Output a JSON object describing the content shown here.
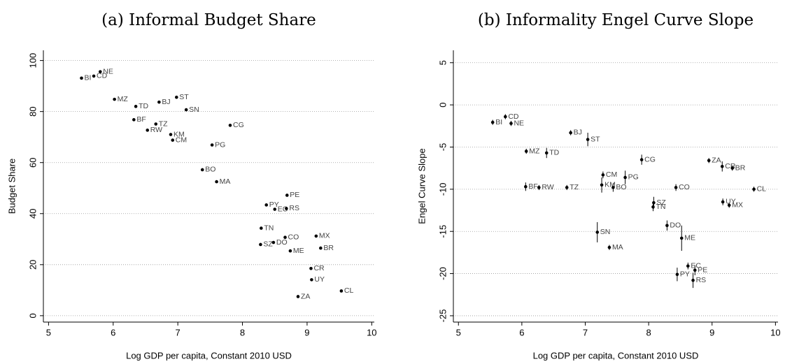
{
  "chart_data": [
    {
      "type": "scatter",
      "title": "(a) Informal Budget Share",
      "xlabel": "Log GDP per capita, Constant 2010 USD",
      "ylabel": "Budget Share",
      "labels": [
        "BI",
        "CD",
        "NE",
        "MZ",
        "TD",
        "BJ",
        "ST",
        "BF",
        "TZ",
        "RW",
        "SN",
        "KM",
        "CM",
        "CG",
        "PG",
        "BO",
        "MA",
        "PE",
        "PY",
        "EC",
        "RS",
        "TN",
        "MX",
        "CO",
        "DO",
        "SZ",
        "BR",
        "ME",
        "CR",
        "UY",
        "CL",
        "ZA"
      ],
      "x": [
        5.51,
        5.7,
        5.8,
        6.02,
        6.35,
        6.71,
        6.98,
        6.32,
        6.66,
        6.53,
        7.13,
        6.89,
        6.92,
        7.81,
        7.53,
        7.38,
        7.6,
        8.69,
        8.37,
        8.5,
        8.68,
        8.29,
        9.14,
        8.66,
        8.48,
        8.28,
        9.21,
        8.74,
        9.06,
        9.07,
        9.53,
        8.86
      ],
      "y": [
        93.1,
        93.9,
        95.6,
        84.8,
        82.0,
        83.7,
        85.6,
        76.8,
        75.1,
        72.7,
        80.7,
        71.0,
        68.8,
        74.6,
        66.9,
        57.2,
        52.5,
        47.2,
        43.4,
        41.7,
        42.0,
        34.3,
        31.2,
        30.7,
        28.7,
        27.9,
        26.5,
        25.4,
        18.5,
        14.1,
        9.7,
        7.5
      ],
      "color": "#000000",
      "xlim": [
        4.92,
        10.04
      ],
      "ylim": [
        -2.5,
        104
      ],
      "xticks": [
        5,
        6,
        7,
        8,
        9,
        10
      ],
      "yticks": [
        0,
        20,
        40,
        60,
        80,
        100
      ],
      "grid": true
    },
    {
      "type": "scatter",
      "title": "(b) Informality Engel Curve Slope",
      "xlabel": "Log GDP per capita, Constant 2010 USD",
      "ylabel": "Engel Curve Slope",
      "labels": [
        "BI",
        "CD",
        "NE",
        "BJ",
        "ST",
        "MZ",
        "TD",
        "CG",
        "ZA",
        "CR",
        "BR",
        "CM",
        "PG",
        "BF",
        "RW",
        "TZ",
        "KM",
        "BO",
        "CO",
        "CL",
        "UY",
        "MX",
        "SZ",
        "TN",
        "DO",
        "SN",
        "ME",
        "MA",
        "EC",
        "PE",
        "PY",
        "RS"
      ],
      "x": [
        5.54,
        5.74,
        5.83,
        6.77,
        7.04,
        6.07,
        6.39,
        7.89,
        8.95,
        9.16,
        9.32,
        7.28,
        7.63,
        6.06,
        6.27,
        6.71,
        7.26,
        7.44,
        8.43,
        9.66,
        9.17,
        9.27,
        8.08,
        8.07,
        8.29,
        7.19,
        8.52,
        7.38,
        8.62,
        8.73,
        8.45,
        8.7
      ],
      "y": [
        -2.07,
        -1.4,
        -2.2,
        -3.3,
        -4.1,
        -5.5,
        -5.7,
        -6.5,
        -6.6,
        -7.3,
        -7.5,
        -8.3,
        -8.6,
        -9.7,
        -9.8,
        -9.8,
        -9.5,
        -9.8,
        -9.8,
        -10.0,
        -11.5,
        -11.9,
        -11.6,
        -12.1,
        -14.3,
        -15.1,
        -15.8,
        -16.9,
        -19.1,
        -19.6,
        -20.1,
        -20.8
      ],
      "errors": [
        0.3,
        0.3,
        0.3,
        0.3,
        0.8,
        0.3,
        0.6,
        0.6,
        0.3,
        0.6,
        0.3,
        0.4,
        0.8,
        0.5,
        0.3,
        0.3,
        0.9,
        0.5,
        0.4,
        0.3,
        0.4,
        0.3,
        0.7,
        0.5,
        0.6,
        1.2,
        1.5,
        0.3,
        0.4,
        0.6,
        0.8,
        0.9
      ],
      "color": "#000000",
      "xlim": [
        4.92,
        10.04
      ],
      "ylim": [
        -25.75,
        6.47
      ],
      "xticks": [
        5,
        6,
        7,
        8,
        9,
        10
      ],
      "yticks": [
        -25,
        -20,
        -15,
        -10,
        -5,
        0,
        5
      ],
      "grid": true
    }
  ]
}
